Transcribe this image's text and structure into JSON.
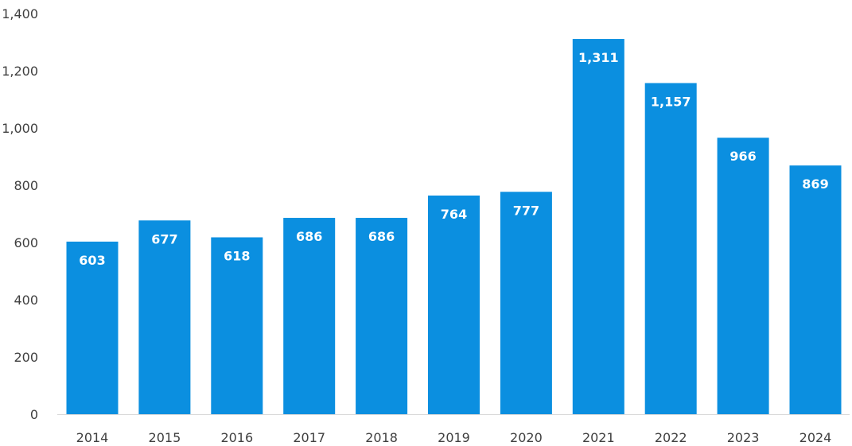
{
  "chart_data": {
    "type": "bar",
    "title": "",
    "xlabel": "",
    "ylabel": "",
    "categories": [
      "2014",
      "2015",
      "2016",
      "2017",
      "2018",
      "2019",
      "2020",
      "2021",
      "2022",
      "2023",
      "2024"
    ],
    "values": [
      603,
      677,
      618,
      686,
      686,
      764,
      777,
      1311,
      1157,
      966,
      869
    ],
    "data_labels": [
      "603",
      "677",
      "618",
      "686",
      "686",
      "764",
      "777",
      "1,311",
      "1,157",
      "966",
      "869"
    ],
    "ylim": [
      0,
      1400
    ],
    "yticks": [
      0,
      200,
      400,
      600,
      800,
      1000,
      1200,
      1400
    ],
    "ytick_labels": [
      "0",
      "200",
      "400",
      "600",
      "800",
      "1,000",
      "1,200",
      "1,400"
    ],
    "grid": false,
    "legend": "none",
    "bar_color": "#0b8fe0",
    "axis_color": "#d9d9d9",
    "text_color": "#404040"
  }
}
